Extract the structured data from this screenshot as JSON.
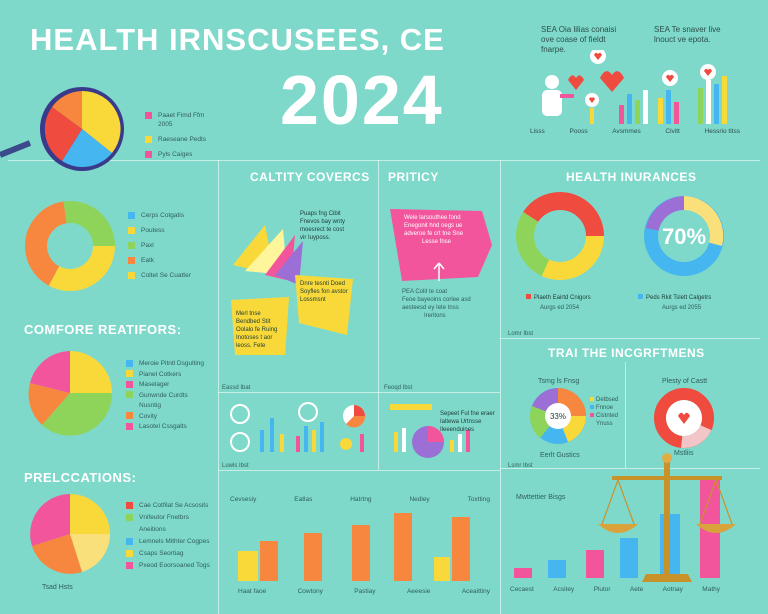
{
  "header": {
    "title": "HEALTH IRNSCUSEES, CE",
    "year": "2024",
    "top_note_1": "SEA Oia lilias conaisi",
    "top_note_2": "ove coase of fieldt",
    "top_note_3": "fnarpe.",
    "top_note_4": "SEA Te snaver live",
    "top_note_5": "lnouct ve epota.",
    "icon_labels": [
      "Lisss",
      "Pooss",
      "Avsmmes",
      "Civitt",
      "Hessrio titss"
    ]
  },
  "left": {
    "pie1_legend": [
      "Paaet Fimd Ffm",
      "2005",
      "Raeseane Pedts",
      "Pyls Caiges"
    ],
    "donut_legend": [
      "Cerps Cotgatis",
      "Poutess",
      "Paxl",
      "Eatk",
      "Coltet Se Cuatter"
    ],
    "section2_title": "COMFORE REATIFORS:",
    "pie2_legend": [
      "Meroie Pitntl Dsgulting",
      "Pianel Cotkers",
      "Maselager",
      "Gunwnde Curdts",
      "Nusntig",
      "Covity",
      "Lasotel Cssgalts"
    ],
    "section3_title": "PRELCCATIONS:",
    "pie3_legend": [
      "Cae Cotfilat Se Acsosits",
      "Vnifeutor Fnetbrs",
      "Aneitions",
      "Lemnels Mithter Cogpes",
      "Csaps Seortiag",
      "Pxeod Eoorsoaned Togs"
    ]
  },
  "middle": {
    "coverage_title": "CALTITY COVERCS",
    "coverage_note1": "Puaps fng Cibit",
    "coverage_note2": "Fnevos bay wnty",
    "coverage_note3": "moesrect te cost",
    "coverage_note4": "vir Iuyposs.",
    "coverage_note5": "Dnre tesnti Doed",
    "coverage_note6": "Soyfles fon avstor",
    "coverage_note7": "Lossmsnt",
    "coverage_note8": "Merl tnse",
    "coverage_note9": "Bendbed Stit",
    "coverage_note10": "Oolalo fe Ruing",
    "coverage_note11": "Inotoses t aor",
    "coverage_note12": "leoss. Fete",
    "coverage_foot": "Eassd Ibat",
    "policy_title": "PRITICY",
    "policy_note1": "Wele larsouthee fond",
    "policy_note2": "Enegonit hnd oegs ue",
    "policy_note3": "adveroe fe crt tne Sne",
    "policy_note4": "Lesse fnse",
    "policy_note5": "PEA Colit te coat",
    "policy_note6": "Feoe bayeoins corlee asd",
    "policy_note7": "aesteesd ey Iete tnss",
    "policy_note8": "Ireritons",
    "policy_foot": "Feoqd Ibst",
    "mini_left_foot": "Luwls Ibst",
    "mini_right_note": "Sepeet Ful fne eraer",
    "mini_right_note2": "Ialtewa Urtnsse",
    "mini_right_note3": "Ileeenduines",
    "bottom_labels_top": [
      "Cevsesiy",
      "Eatlas",
      "Hatrtng",
      "Nedley",
      "Toxtting"
    ],
    "bottom_labels_bottom": [
      "Haat faoe",
      "Cowtony",
      "Pastiay",
      "Aeeesie",
      "Aceaittiny"
    ]
  },
  "right": {
    "insurance_title": "HEALTH INURANCES",
    "donut1_label": "Plaeth Eairtd Cnigors",
    "donut1_sub": "Aurgs ed 2054",
    "donut2_pct": "70%",
    "donut2_label": "Peds Rkit Tslett Calgetrs",
    "donut2_sub": "Aurgs ed 2055",
    "small_foot": "Lomr Ibst",
    "section_title": "TRAI THE INCGRFTMENS",
    "pie_title": "Tsmg ls Fnsg",
    "pie_center": "33%",
    "pie_legend": [
      "Detbsed",
      "Fnnoe",
      "Cistnted",
      "Ynuss"
    ],
    "pie_foot": "Eerlt Gustics",
    "heart_title": "Plesty of Castt",
    "heart_foot": "Mstliis",
    "mini_foot": "Lsmr Ibst",
    "bars_title": "Mwttettier Bisgs",
    "bars_labels": [
      "Cecaest",
      "Acsitey",
      "Plutor",
      "Aete",
      "Aotnay",
      "Mathy"
    ]
  },
  "colors": {
    "background": "#7fd9cb",
    "red": "#ef4b3f",
    "orange": "#f7873e",
    "yellow": "#f9d93a",
    "green": "#8fd45a",
    "blue": "#45b6ef",
    "pink": "#f2559c",
    "purple": "#9b6fd6",
    "gold": "#c8922a"
  }
}
